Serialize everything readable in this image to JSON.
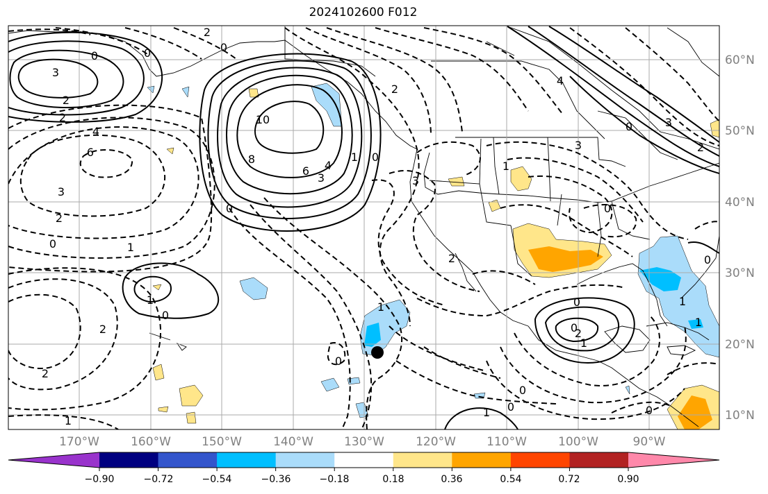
{
  "title": "2024102600 F012",
  "lon_labels": [
    "170°W",
    "160°W",
    "150°W",
    "140°W",
    "130°W",
    "120°W",
    "110°W",
    "100°W",
    "90°W"
  ],
  "lat_labels": [
    "60°N",
    "50°N",
    "40°N",
    "30°N",
    "20°N",
    "10°N"
  ],
  "colorbar": {
    "tick_labels": [
      "−0.90",
      "−0.72",
      "−0.54",
      "−0.36",
      "−0.18",
      "0.18",
      "0.36",
      "0.54",
      "0.72",
      "0.90"
    ],
    "colors": [
      "#9933cc",
      "#000080",
      "#3355cc",
      "#00bfff",
      "#aadcfa",
      "#ffffff",
      "#ffe68a",
      "#ffa500",
      "#ff4500",
      "#b22222",
      "#ff88aa"
    ]
  },
  "contour_labels": [
    "2",
    "0",
    "3",
    "2",
    "2",
    "4",
    "6",
    "3",
    "2",
    "1",
    "0",
    "10",
    "8",
    "6",
    "4",
    "3",
    "1",
    "0",
    "0",
    "3",
    "2",
    "0",
    "1",
    "1",
    "0",
    "2",
    "2",
    "1",
    "0",
    "0",
    "3",
    "2",
    "1",
    "0",
    "3",
    "0",
    "4",
    "0",
    "0",
    "2",
    "1",
    "1",
    "0",
    "0",
    "0",
    "1",
    "0",
    "2",
    "1"
  ],
  "marker": "storm-position-dot"
}
